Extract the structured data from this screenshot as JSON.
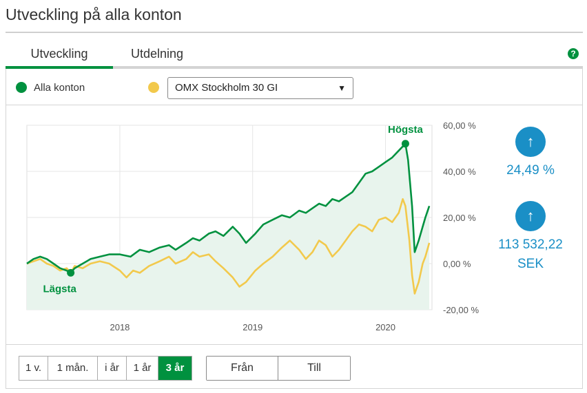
{
  "page": {
    "title": "Utveckling på alla konton"
  },
  "tabs": [
    {
      "label": "Utveckling",
      "active": true
    },
    {
      "label": "Utdelning",
      "active": false
    }
  ],
  "help": {
    "glyph": "?"
  },
  "legend": {
    "series_main": "Alla konton",
    "benchmark_selected": "OMX Stockholm 30 GI",
    "caret": "▼"
  },
  "stats": {
    "arrow": "↑",
    "percent": "24,49 %",
    "amount_line1": "113 532,22",
    "amount_line2": "SEK"
  },
  "range_buttons": [
    {
      "label": "1 v.",
      "active": false
    },
    {
      "label": "1 mån.",
      "active": false
    },
    {
      "label": "i år",
      "active": false
    },
    {
      "label": "1 år",
      "active": false
    },
    {
      "label": "3 år",
      "active": true
    }
  ],
  "date_buttons": {
    "from": "Från",
    "to": "Till"
  },
  "colors": {
    "green": "#00913f",
    "yellow": "#f2c94c",
    "blue": "#1a8fc6",
    "fill": "#e8f4ed"
  },
  "chart_data": {
    "type": "line",
    "x_tick_labels": [
      "2018",
      "2019",
      "2020"
    ],
    "x_ticks": [
      2018.0,
      2019.0,
      2020.0
    ],
    "xlim": [
      2017.3,
      2020.35
    ],
    "ylim": [
      -20,
      60
    ],
    "y_tick_labels": [
      "60,00 %",
      "40,00 %",
      "20,00 %",
      "0,00 %",
      "-20,00 %"
    ],
    "y_ticks": [
      60,
      40,
      20,
      0,
      -20
    ],
    "grid": true,
    "annotations": [
      {
        "label": "Högsta",
        "x": 2020.15,
        "y": 52
      },
      {
        "label": "Lägsta",
        "x": 2017.63,
        "y": -4
      }
    ],
    "series": [
      {
        "name": "Alla konton",
        "color": "#00913f",
        "filled": true,
        "points": [
          [
            2017.3,
            0
          ],
          [
            2017.35,
            2
          ],
          [
            2017.4,
            3
          ],
          [
            2017.45,
            2
          ],
          [
            2017.5,
            0
          ],
          [
            2017.55,
            -2
          ],
          [
            2017.6,
            -3
          ],
          [
            2017.63,
            -4
          ],
          [
            2017.66,
            -2
          ],
          [
            2017.72,
            0
          ],
          [
            2017.78,
            2
          ],
          [
            2017.85,
            3
          ],
          [
            2017.92,
            4
          ],
          [
            2018.0,
            4
          ],
          [
            2018.08,
            3
          ],
          [
            2018.15,
            6
          ],
          [
            2018.22,
            5
          ],
          [
            2018.3,
            7
          ],
          [
            2018.37,
            8
          ],
          [
            2018.42,
            6
          ],
          [
            2018.5,
            9
          ],
          [
            2018.55,
            11
          ],
          [
            2018.6,
            10
          ],
          [
            2018.67,
            13
          ],
          [
            2018.72,
            14
          ],
          [
            2018.78,
            12
          ],
          [
            2018.85,
            16
          ],
          [
            2018.9,
            13
          ],
          [
            2018.95,
            9
          ],
          [
            2019.02,
            13
          ],
          [
            2019.08,
            17
          ],
          [
            2019.15,
            19
          ],
          [
            2019.22,
            21
          ],
          [
            2019.28,
            20
          ],
          [
            2019.35,
            23
          ],
          [
            2019.4,
            22
          ],
          [
            2019.45,
            24
          ],
          [
            2019.5,
            26
          ],
          [
            2019.55,
            25
          ],
          [
            2019.6,
            28
          ],
          [
            2019.65,
            27
          ],
          [
            2019.7,
            29
          ],
          [
            2019.75,
            31
          ],
          [
            2019.8,
            35
          ],
          [
            2019.85,
            39
          ],
          [
            2019.9,
            40
          ],
          [
            2019.95,
            42
          ],
          [
            2020.0,
            44
          ],
          [
            2020.05,
            46
          ],
          [
            2020.1,
            49
          ],
          [
            2020.15,
            52
          ],
          [
            2020.17,
            45
          ],
          [
            2020.2,
            25
          ],
          [
            2020.22,
            5
          ],
          [
            2020.25,
            10
          ],
          [
            2020.28,
            16
          ],
          [
            2020.3,
            20
          ],
          [
            2020.33,
            25
          ]
        ]
      },
      {
        "name": "OMX Stockholm 30 GI",
        "color": "#f2c94c",
        "filled": false,
        "points": [
          [
            2017.3,
            0
          ],
          [
            2017.35,
            1
          ],
          [
            2017.4,
            2
          ],
          [
            2017.45,
            0
          ],
          [
            2017.5,
            -1
          ],
          [
            2017.55,
            -3
          ],
          [
            2017.6,
            -2
          ],
          [
            2017.63,
            -4
          ],
          [
            2017.66,
            -1
          ],
          [
            2017.72,
            -2
          ],
          [
            2017.78,
            0
          ],
          [
            2017.85,
            1
          ],
          [
            2017.92,
            0
          ],
          [
            2018.0,
            -3
          ],
          [
            2018.05,
            -6
          ],
          [
            2018.1,
            -3
          ],
          [
            2018.15,
            -4
          ],
          [
            2018.22,
            -1
          ],
          [
            2018.3,
            1
          ],
          [
            2018.37,
            3
          ],
          [
            2018.42,
            0
          ],
          [
            2018.5,
            2
          ],
          [
            2018.55,
            5
          ],
          [
            2018.6,
            3
          ],
          [
            2018.67,
            4
          ],
          [
            2018.72,
            1
          ],
          [
            2018.78,
            -2
          ],
          [
            2018.85,
            -6
          ],
          [
            2018.9,
            -10
          ],
          [
            2018.95,
            -8
          ],
          [
            2019.02,
            -3
          ],
          [
            2019.08,
            0
          ],
          [
            2019.15,
            3
          ],
          [
            2019.22,
            7
          ],
          [
            2019.28,
            10
          ],
          [
            2019.35,
            6
          ],
          [
            2019.4,
            2
          ],
          [
            2019.45,
            5
          ],
          [
            2019.5,
            10
          ],
          [
            2019.55,
            8
          ],
          [
            2019.6,
            3
          ],
          [
            2019.65,
            6
          ],
          [
            2019.7,
            10
          ],
          [
            2019.75,
            14
          ],
          [
            2019.8,
            17
          ],
          [
            2019.85,
            16
          ],
          [
            2019.9,
            14
          ],
          [
            2019.95,
            19
          ],
          [
            2020.0,
            20
          ],
          [
            2020.05,
            18
          ],
          [
            2020.1,
            22
          ],
          [
            2020.13,
            28
          ],
          [
            2020.15,
            25
          ],
          [
            2020.18,
            10
          ],
          [
            2020.2,
            -5
          ],
          [
            2020.22,
            -13
          ],
          [
            2020.25,
            -8
          ],
          [
            2020.28,
            0
          ],
          [
            2020.3,
            3
          ],
          [
            2020.33,
            9
          ]
        ]
      }
    ]
  }
}
